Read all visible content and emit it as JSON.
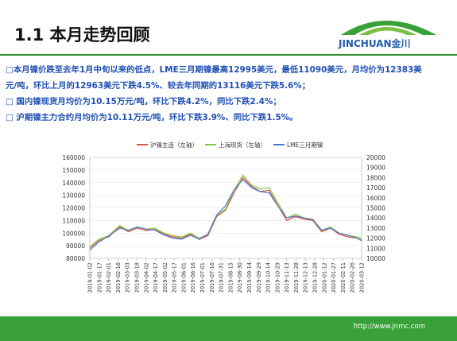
{
  "header": {
    "title": "1.1  本月走势回顾",
    "brand": "JINCHUAN金川"
  },
  "bullets": [
    "□本月镍价跌至去年1月中旬以来的低点，LME三月期镍最高12995美元，最低11090美元，月均价为12383美",
    "元/吨，环比上月的12963美元下跌4.5%、较去年同期的13116美元下跌5.6%；",
    "□ 国内镍现货月均价为10.15万元/吨，环比下跌4.2%，同比下跌2.4%；",
    "□ 沪期镍主力合约月均价为10.11万元/吨，环比下跌3.9%、同比下跌1.5%。"
  ],
  "footer": {
    "url": "http://www.jnmc.com"
  },
  "colors": {
    "accent_green": "#3aa13a",
    "title_blue": "#1f4fb4"
  },
  "chart_data": {
    "type": "line",
    "title": "",
    "x": [
      "2019-01-02",
      "2019-01-16",
      "2019-02-01",
      "2019-02-19",
      "2019-03-05",
      "2019-03-19",
      "2019-04-02",
      "2019-04-16",
      "2019-05-01",
      "2019-05-15",
      "2019-05-29",
      "2019-06-12",
      "2019-06-26",
      "2019-07-10",
      "2019-07-24",
      "2019-08-07",
      "2019-08-21",
      "2019-09-04",
      "2019-09-18",
      "2019-10-02",
      "2019-10-16",
      "2019-10-30",
      "2019-11-13",
      "2019-11-27",
      "2019-12-11",
      "2019-12-25",
      "2020-01-08",
      "2020-01-22",
      "2020-02-05",
      "2020-02-19",
      "2020-03-04",
      "2020-03-12"
    ],
    "xticks": [
      "2019-01-02",
      "2019-01-17",
      "2019-02-01",
      "2019-02-16",
      "2019-03-03",
      "2019-03-18",
      "2019-04-02",
      "2019-04-17",
      "2019-05-02",
      "2019-05-17",
      "2019-06-01",
      "2019-06-16",
      "2019-07-01",
      "2019-07-16",
      "2019-07-31",
      "2019-08-15",
      "2019-08-30",
      "2019-09-14",
      "2019-09-29",
      "2019-10-14",
      "2019-10-29",
      "2019-11-13",
      "2019-11-28",
      "2019-12-13",
      "2019-12-28",
      "2020-01-12",
      "2020-01-27",
      "2020-02-11",
      "2020-02-26",
      "2020-03-12"
    ],
    "series": [
      {
        "name": "沪镍主连（左轴）",
        "axis": "left",
        "color": "#d9534f",
        "values": [
          88000,
          94000,
          97000,
          105000,
          101000,
          104000,
          102000,
          103000,
          99000,
          97000,
          96000,
          99000,
          95000,
          98000,
          113000,
          118000,
          132000,
          144000,
          137000,
          133000,
          134000,
          122000,
          110000,
          113000,
          111000,
          110000,
          101000,
          104000,
          99000,
          97000,
          96000,
          94000
        ]
      },
      {
        "name": "上海现货（左轴）",
        "axis": "left",
        "color": "#8cc63f",
        "values": [
          89000,
          95000,
          98000,
          106000,
          102000,
          105000,
          103000,
          104000,
          100000,
          98000,
          97000,
          100000,
          96000,
          99000,
          114000,
          119000,
          134000,
          146000,
          138000,
          135000,
          136000,
          124000,
          112000,
          115000,
          112000,
          111000,
          102000,
          105000,
          100000,
          98000,
          97000,
          96000
        ]
      },
      {
        "name": "LME三月期镍",
        "axis": "right",
        "color": "#4a78c8",
        "values": [
          10800,
          11600,
          12200,
          13000,
          12800,
          13100,
          12900,
          12800,
          12300,
          12000,
          11900,
          12300,
          11900,
          12400,
          14300,
          15200,
          16800,
          17800,
          17000,
          16600,
          16500,
          15200,
          14000,
          14200,
          14000,
          13800,
          12800,
          13000,
          12500,
          12300,
          12000,
          11800
        ]
      }
    ],
    "yleft": {
      "min": 80000,
      "max": 160000,
      "ticks": [
        80000,
        90000,
        100000,
        110000,
        120000,
        130000,
        140000,
        150000,
        160000
      ]
    },
    "yright": {
      "min": 10000,
      "max": 20000,
      "ticks": [
        10000,
        11000,
        12000,
        13000,
        14000,
        15000,
        16000,
        17000,
        18000,
        19000,
        20000
      ]
    },
    "legend_position": "top-center"
  }
}
